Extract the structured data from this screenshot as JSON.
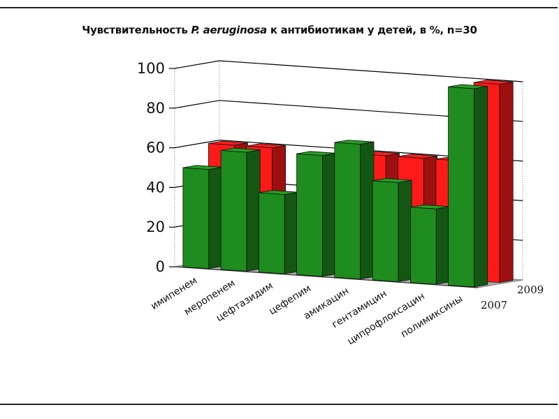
{
  "title": {
    "prefix": "Чувствительность ",
    "italic": "P. aeruginosa",
    "suffix": " к антибиотикам у детей, в %, n=30"
  },
  "colors": {
    "series_2007": "#ff1a1a",
    "series_2009": "#1e8c1e",
    "floor": "#a9a9a9",
    "grid": "#000000"
  },
  "chart_data": {
    "type": "bar",
    "subtype": "3d-clustered-depth",
    "title": "Чувствительность P. aeruginosa к антибиотикам у детей, в %, n=30",
    "categories": [
      "имипенем",
      "меропенем",
      "цефтазидим",
      "цефепим",
      "амикацин",
      "гентамицин",
      "ципрофлоксацин",
      "полимиксины"
    ],
    "series": [
      {
        "name": "2009",
        "color": "#1e8c1e",
        "values": [
          50,
          60,
          40,
          61,
          68,
          50,
          38,
          100
        ]
      },
      {
        "name": "2007",
        "color": "#ff1a1a",
        "values": [
          60,
          60,
          30,
          33,
          60,
          60,
          60,
          100
        ]
      }
    ],
    "ylim": [
      0,
      100
    ],
    "yticks": [
      0,
      20,
      40,
      60,
      80,
      100
    ],
    "xlabel": "",
    "ylabel": "",
    "grid": true,
    "legend": "depth-axis labels"
  }
}
